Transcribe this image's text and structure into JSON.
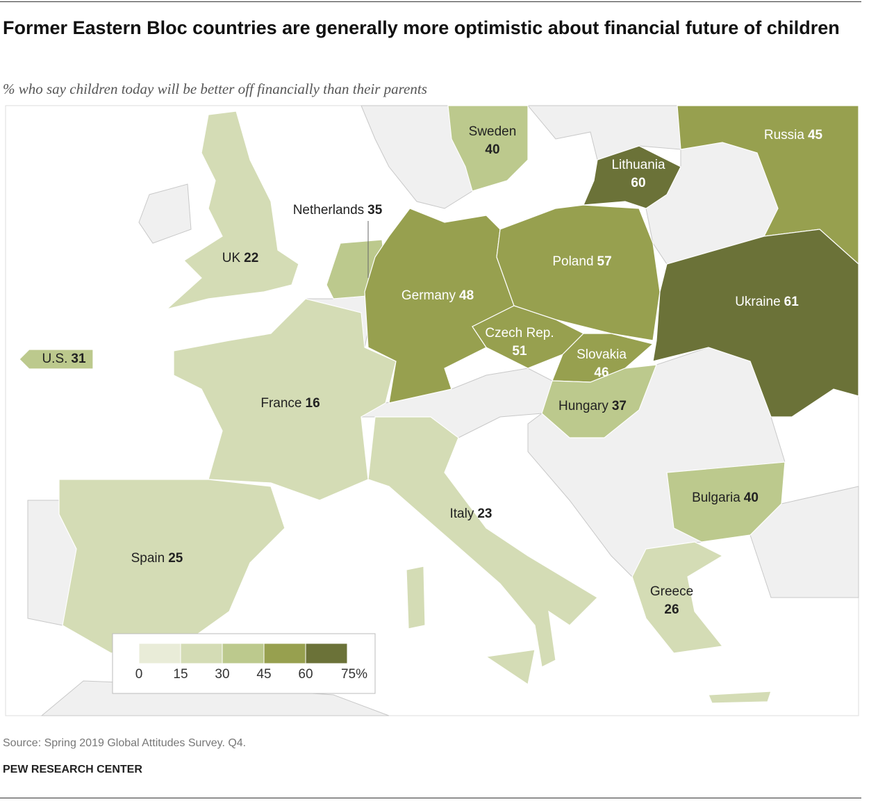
{
  "chart_data": {
    "type": "choropleth",
    "title": "Former Eastern Bloc countries are generally more optimistic about financial future of children",
    "subtitle": "% who say children today will be better off financially than their parents",
    "regions": [
      {
        "name": "UK",
        "value": 22
      },
      {
        "name": "Netherlands",
        "value": 35
      },
      {
        "name": "France",
        "value": 16
      },
      {
        "name": "Spain",
        "value": 25
      },
      {
        "name": "Italy",
        "value": 23
      },
      {
        "name": "Germany",
        "value": 48
      },
      {
        "name": "Sweden",
        "value": 40
      },
      {
        "name": "Lithuania",
        "value": 60
      },
      {
        "name": "Poland",
        "value": 57
      },
      {
        "name": "Czech Rep.",
        "value": 51
      },
      {
        "name": "Slovakia",
        "value": 46
      },
      {
        "name": "Hungary",
        "value": 37
      },
      {
        "name": "Russia",
        "value": 45
      },
      {
        "name": "Ukraine",
        "value": 61
      },
      {
        "name": "Bulgaria",
        "value": 40
      },
      {
        "name": "Greece",
        "value": 26
      },
      {
        "name": "U.S.",
        "value": 31
      }
    ],
    "legend": {
      "ticks": [
        0,
        15,
        30,
        45,
        60,
        {
          "value": 75,
          "label": "75%"
        }
      ],
      "colors": [
        "#e9ecd8",
        "#d4dcb5",
        "#bcc98d",
        "#97a04f",
        "#6b7238"
      ]
    },
    "source": "Source: Spring 2019 Global Attitudes Survey. Q4.",
    "organization": "PEW RESEARCH CENTER"
  }
}
